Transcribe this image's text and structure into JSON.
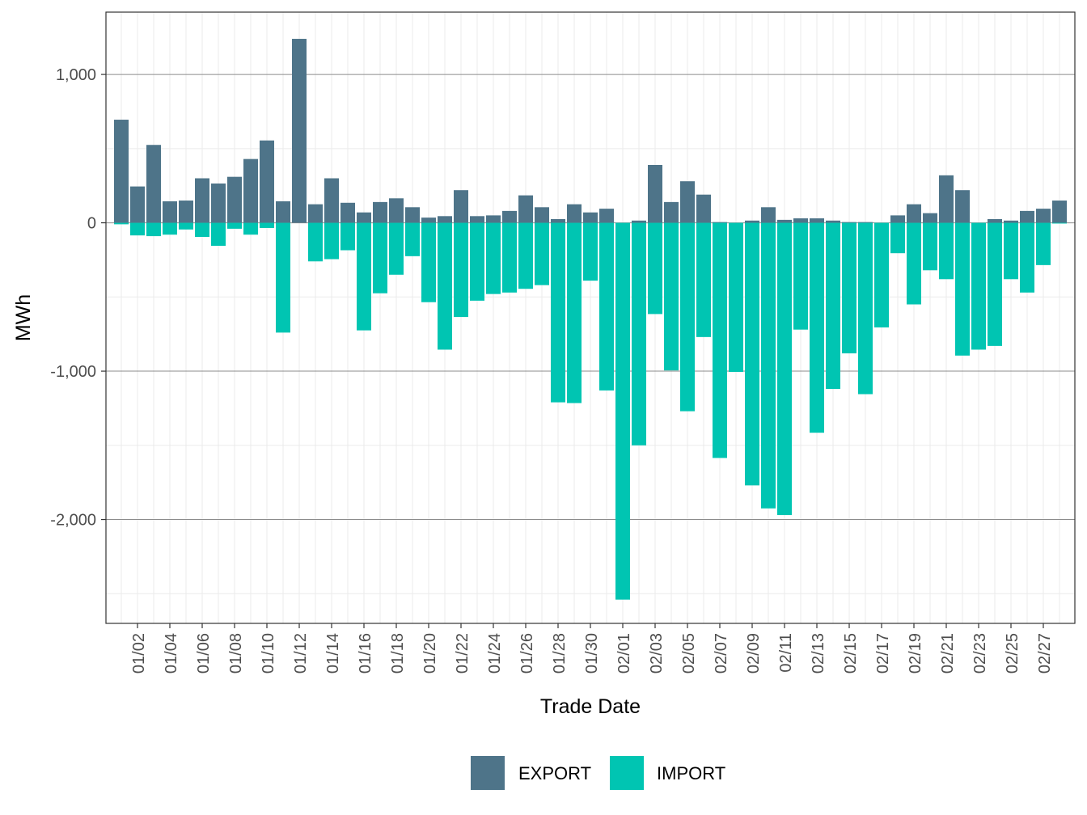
{
  "chart_data": {
    "type": "bar",
    "xlabel": "Trade Date",
    "ylabel": "MWh",
    "ylim": [
      -2700,
      1420
    ],
    "y_ticks": [
      1000,
      0,
      -1000,
      -2000
    ],
    "y_tick_labels": [
      "1,000",
      "0",
      "-1,000",
      "-2,000"
    ],
    "grid": true,
    "legend_position": "bottom",
    "categories": [
      "01/01",
      "01/02",
      "01/03",
      "01/04",
      "01/05",
      "01/06",
      "01/07",
      "01/08",
      "01/09",
      "01/10",
      "01/11",
      "01/12",
      "01/13",
      "01/14",
      "01/15",
      "01/16",
      "01/17",
      "01/18",
      "01/19",
      "01/20",
      "01/21",
      "01/22",
      "01/23",
      "01/24",
      "01/25",
      "01/26",
      "01/27",
      "01/28",
      "01/29",
      "01/30",
      "01/31",
      "02/01",
      "02/02",
      "02/03",
      "02/04",
      "02/05",
      "02/06",
      "02/07",
      "02/08",
      "02/09",
      "02/10",
      "02/11",
      "02/12",
      "02/13",
      "02/14",
      "02/15",
      "02/16",
      "02/17",
      "02/18",
      "02/19",
      "02/20",
      "02/21",
      "02/22",
      "02/23",
      "02/24",
      "02/25",
      "02/26",
      "02/27",
      "02/28"
    ],
    "x_tick_labels": [
      "01/02",
      "01/04",
      "01/06",
      "01/08",
      "01/10",
      "01/12",
      "01/14",
      "01/16",
      "01/18",
      "01/20",
      "01/22",
      "01/24",
      "01/26",
      "01/28",
      "01/30",
      "02/01",
      "02/03",
      "02/05",
      "02/07",
      "02/09",
      "02/11",
      "02/13",
      "02/15",
      "02/17",
      "02/19",
      "02/21",
      "02/23",
      "02/25",
      "02/27"
    ],
    "series": [
      {
        "name": "EXPORT",
        "color": "#4e7489",
        "values": [
          695,
          245,
          525,
          145,
          150,
          300,
          265,
          310,
          430,
          555,
          145,
          1240,
          125,
          300,
          135,
          70,
          140,
          165,
          105,
          35,
          45,
          220,
          45,
          50,
          80,
          185,
          105,
          25,
          125,
          70,
          95,
          0,
          15,
          390,
          140,
          280,
          190,
          5,
          0,
          15,
          105,
          20,
          30,
          30,
          15,
          5,
          5,
          0,
          50,
          125,
          65,
          320,
          220,
          0,
          25,
          15,
          80,
          95,
          150
        ]
      },
      {
        "name": "IMPORT",
        "color": "#00c5b2",
        "values": [
          -10,
          -85,
          -90,
          -80,
          -45,
          -95,
          -155,
          -40,
          -80,
          -35,
          -740,
          0,
          -260,
          -245,
          -185,
          -725,
          -475,
          -350,
          -225,
          -535,
          -855,
          -635,
          -525,
          -480,
          -470,
          -445,
          -420,
          -1210,
          -1215,
          -390,
          -1130,
          -2540,
          -1500,
          -615,
          -995,
          -1270,
          -770,
          -1585,
          -1005,
          -1770,
          -1925,
          -1970,
          -720,
          -1415,
          -1120,
          -880,
          -1155,
          -705,
          -205,
          -550,
          -320,
          -380,
          -895,
          -855,
          -830,
          -380,
          -470,
          -285,
          -5
        ]
      }
    ]
  }
}
